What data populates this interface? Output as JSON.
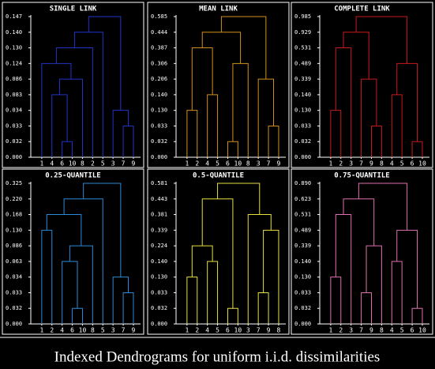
{
  "caption": "Indexed Dendrograms for uniform i.i.d. dissimilarities",
  "chart_data": [
    {
      "type": "dendrogram",
      "title": "SINGLE LINK",
      "color": "#2233c8",
      "y_scale": "indexed",
      "leaves": [
        1,
        4,
        6,
        10,
        8,
        2,
        5,
        3,
        7,
        9
      ],
      "yticks": [
        {
          "value": 0,
          "label": "0.000"
        },
        0.032,
        0.033,
        0.034,
        0.083,
        0.086,
        0.124,
        {
          "value": 0.13,
          "label": "0.130"
        },
        {
          "value": 0.14,
          "label": "0.140"
        },
        0.147
      ],
      "merges": [
        {
          "join": [
            [
              6
            ],
            [
              10
            ]
          ],
          "height": 0.032
        },
        {
          "join": [
            [
              7
            ],
            [
              9
            ]
          ],
          "height": 0.033
        },
        {
          "join": [
            [
              3
            ],
            [
              7,
              9
            ]
          ],
          "height": 0.034
        },
        {
          "join": [
            [
              4
            ],
            [
              6,
              10
            ]
          ],
          "height": 0.083
        },
        {
          "join": [
            [
              4,
              6,
              10
            ],
            [
              8
            ]
          ],
          "height": 0.086
        },
        {
          "join": [
            [
              1
            ],
            [
              4,
              6,
              10,
              8
            ]
          ],
          "height": 0.124
        },
        {
          "join": [
            [
              1,
              4,
              6,
              10,
              8
            ],
            [
              2
            ]
          ],
          "height": 0.13
        },
        {
          "join": [
            [
              1,
              4,
              6,
              10,
              8,
              2
            ],
            [
              5
            ]
          ],
          "height": 0.14
        },
        {
          "join": [
            [
              1,
              4,
              6,
              10,
              8,
              2,
              5
            ],
            [
              3,
              7,
              9
            ]
          ],
          "height": 0.147
        }
      ]
    },
    {
      "type": "dendrogram",
      "title": "MEAN LINK",
      "color": "#d4901e",
      "y_scale": "indexed",
      "leaves": [
        1,
        2,
        4,
        5,
        6,
        10,
        8,
        3,
        7,
        9
      ],
      "yticks": [
        {
          "value": 0,
          "label": "0.000"
        },
        0.032,
        0.033,
        {
          "value": 0.13,
          "label": "0.130"
        },
        {
          "value": 0.14,
          "label": "0.140"
        },
        0.206,
        0.306,
        0.387,
        0.444,
        0.585
      ],
      "merges": [
        {
          "join": [
            [
              6
            ],
            [
              10
            ]
          ],
          "height": 0.032
        },
        {
          "join": [
            [
              7
            ],
            [
              9
            ]
          ],
          "height": 0.033
        },
        {
          "join": [
            [
              1
            ],
            [
              2
            ]
          ],
          "height": 0.13
        },
        {
          "join": [
            [
              4
            ],
            [
              5
            ]
          ],
          "height": 0.14
        },
        {
          "join": [
            [
              3
            ],
            [
              7,
              9
            ]
          ],
          "height": 0.206
        },
        {
          "join": [
            [
              6,
              10
            ],
            [
              8
            ]
          ],
          "height": 0.306
        },
        {
          "join": [
            [
              1,
              2
            ],
            [
              4,
              5
            ]
          ],
          "height": 0.387
        },
        {
          "join": [
            [
              1,
              2,
              4,
              5
            ],
            [
              6,
              10,
              8
            ]
          ],
          "height": 0.444
        },
        {
          "join": [
            [
              1,
              2,
              4,
              5,
              6,
              10,
              8
            ],
            [
              3,
              7,
              9
            ]
          ],
          "height": 0.585
        }
      ]
    },
    {
      "type": "dendrogram",
      "title": "COMPLETE LINK",
      "color": "#c81a1a",
      "y_scale": "indexed",
      "leaves": [
        1,
        2,
        3,
        7,
        9,
        8,
        4,
        5,
        6,
        10
      ],
      "yticks": [
        {
          "value": 0,
          "label": "0.000"
        },
        0.032,
        0.033,
        {
          "value": 0.13,
          "label": "0.130"
        },
        {
          "value": 0.14,
          "label": "0.140"
        },
        0.339,
        0.489,
        0.531,
        0.929,
        0.985
      ],
      "merges": [
        {
          "join": [
            [
              6
            ],
            [
              10
            ]
          ],
          "height": 0.032
        },
        {
          "join": [
            [
              9
            ],
            [
              8
            ]
          ],
          "height": 0.033
        },
        {
          "join": [
            [
              1
            ],
            [
              2
            ]
          ],
          "height": 0.13
        },
        {
          "join": [
            [
              4
            ],
            [
              5
            ]
          ],
          "height": 0.14
        },
        {
          "join": [
            [
              7
            ],
            [
              9,
              8
            ]
          ],
          "height": 0.339
        },
        {
          "join": [
            [
              4,
              5
            ],
            [
              6,
              10
            ]
          ],
          "height": 0.489
        },
        {
          "join": [
            [
              1,
              2
            ],
            [
              3
            ]
          ],
          "height": 0.531
        },
        {
          "join": [
            [
              1,
              2,
              3
            ],
            [
              7,
              9,
              8
            ]
          ],
          "height": 0.929
        },
        {
          "join": [
            [
              1,
              2,
              3,
              7,
              9,
              8
            ],
            [
              4,
              5,
              6,
              10
            ]
          ],
          "height": 0.985
        }
      ]
    },
    {
      "type": "dendrogram",
      "title": "0.25-QUANTILE",
      "color": "#2c8ad8",
      "y_scale": "indexed",
      "leaves": [
        1,
        2,
        4,
        6,
        10,
        8,
        5,
        3,
        7,
        9
      ],
      "yticks": [
        {
          "value": 0,
          "label": "0.000"
        },
        0.032,
        0.033,
        0.034,
        0.063,
        0.086,
        {
          "value": 0.13,
          "label": "0.130"
        },
        0.168,
        {
          "value": 0.22,
          "label": "0.220"
        },
        0.325
      ],
      "merges": [
        {
          "join": [
            [
              6
            ],
            [
              10
            ]
          ],
          "height": 0.032
        },
        {
          "join": [
            [
              7
            ],
            [
              9
            ]
          ],
          "height": 0.033
        },
        {
          "join": [
            [
              3
            ],
            [
              7,
              9
            ]
          ],
          "height": 0.034
        },
        {
          "join": [
            [
              4
            ],
            [
              6,
              10
            ]
          ],
          "height": 0.063
        },
        {
          "join": [
            [
              4,
              6,
              10
            ],
            [
              8
            ]
          ],
          "height": 0.086
        },
        {
          "join": [
            [
              1
            ],
            [
              2
            ]
          ],
          "height": 0.13
        },
        {
          "join": [
            [
              1,
              2
            ],
            [
              4,
              6,
              10,
              8
            ]
          ],
          "height": 0.168
        },
        {
          "join": [
            [
              1,
              2,
              4,
              6,
              10,
              8
            ],
            [
              5
            ]
          ],
          "height": 0.22
        },
        {
          "join": [
            [
              1,
              2,
              4,
              6,
              10,
              8,
              5
            ],
            [
              3,
              7,
              9
            ]
          ],
          "height": 0.325
        }
      ]
    },
    {
      "type": "dendrogram",
      "title": "0.5-QUANTILE",
      "color": "#e8e040",
      "y_scale": "indexed",
      "leaves": [
        1,
        2,
        4,
        5,
        6,
        10,
        3,
        7,
        9,
        8
      ],
      "yticks": [
        {
          "value": 0,
          "label": "0.000"
        },
        0.032,
        0.033,
        {
          "value": 0.13,
          "label": "0.130"
        },
        {
          "value": 0.14,
          "label": "0.140"
        },
        0.224,
        0.339,
        0.381,
        0.443,
        0.581
      ],
      "merges": [
        {
          "join": [
            [
              6
            ],
            [
              10
            ]
          ],
          "height": 0.032
        },
        {
          "join": [
            [
              7
            ],
            [
              9
            ]
          ],
          "height": 0.033
        },
        {
          "join": [
            [
              1
            ],
            [
              2
            ]
          ],
          "height": 0.13
        },
        {
          "join": [
            [
              4
            ],
            [
              5
            ]
          ],
          "height": 0.14
        },
        {
          "join": [
            [
              1,
              2
            ],
            [
              4,
              5
            ]
          ],
          "height": 0.224
        },
        {
          "join": [
            [
              7,
              9
            ],
            [
              8
            ]
          ],
          "height": 0.339
        },
        {
          "join": [
            [
              3
            ],
            [
              7,
              9,
              8
            ]
          ],
          "height": 0.381
        },
        {
          "join": [
            [
              1,
              2,
              4,
              5
            ],
            [
              6,
              10
            ]
          ],
          "height": 0.443
        },
        {
          "join": [
            [
              1,
              2,
              4,
              5,
              6,
              10
            ],
            [
              3,
              7,
              9,
              8
            ]
          ],
          "height": 0.581
        }
      ]
    },
    {
      "type": "dendrogram",
      "title": "0.75-QUANTILE",
      "color": "#e070b0",
      "y_scale": "indexed",
      "leaves": [
        1,
        2,
        3,
        7,
        9,
        8,
        4,
        5,
        6,
        10
      ],
      "yticks": [
        {
          "value": 0,
          "label": "0.000"
        },
        0.032,
        0.033,
        {
          "value": 0.13,
          "label": "0.130"
        },
        {
          "value": 0.14,
          "label": "0.140"
        },
        0.339,
        0.489,
        0.531,
        0.623,
        {
          "value": 0.89,
          "label": "0.890"
        }
      ],
      "merges": [
        {
          "join": [
            [
              6
            ],
            [
              10
            ]
          ],
          "height": 0.032
        },
        {
          "join": [
            [
              7
            ],
            [
              9
            ]
          ],
          "height": 0.033
        },
        {
          "join": [
            [
              1
            ],
            [
              2
            ]
          ],
          "height": 0.13
        },
        {
          "join": [
            [
              4
            ],
            [
              5
            ]
          ],
          "height": 0.14
        },
        {
          "join": [
            [
              7,
              9
            ],
            [
              8
            ]
          ],
          "height": 0.339
        },
        {
          "join": [
            [
              4,
              5
            ],
            [
              6,
              10
            ]
          ],
          "height": 0.489
        },
        {
          "join": [
            [
              1,
              2
            ],
            [
              3
            ]
          ],
          "height": 0.531
        },
        {
          "join": [
            [
              1,
              2,
              3
            ],
            [
              7,
              9,
              8
            ]
          ],
          "height": 0.623
        },
        {
          "join": [
            [
              1,
              2,
              3,
              7,
              9,
              8
            ],
            [
              4,
              5,
              6,
              10
            ]
          ],
          "height": 0.89
        }
      ]
    }
  ]
}
